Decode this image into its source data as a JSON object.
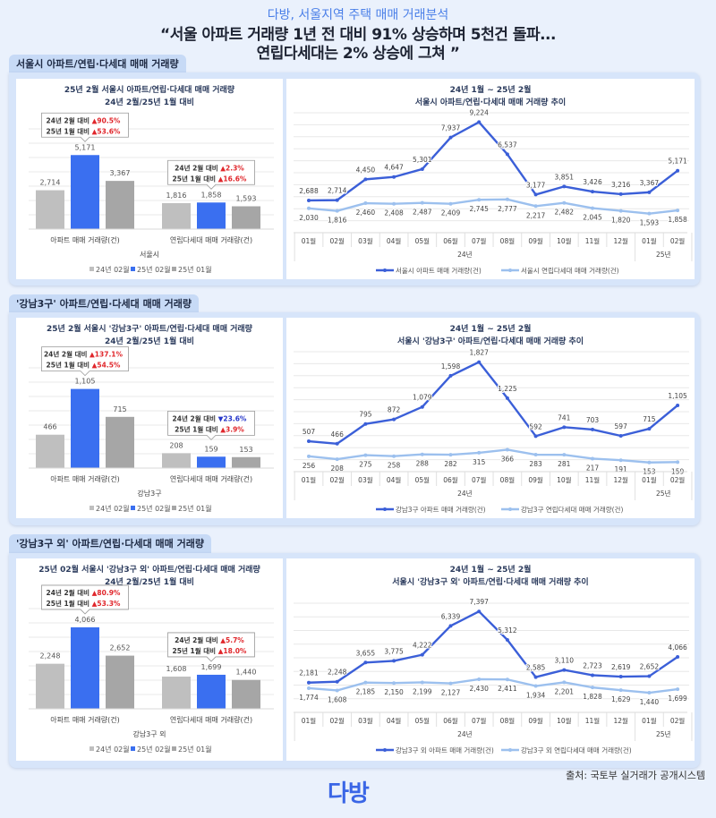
{
  "header": {
    "subtitle": "다방, 서울지역 주택 매매 거래분석",
    "title_line1": "“서울 아파트 거래량 1년 전 대비 91% 상승하며 5천건 돌파...",
    "title_line2": "연립다세대는 2% 상승에 그쳐 ”"
  },
  "sections": [
    {
      "tab": "서울시 아파트/연립·다세대 매매 거래량"
    },
    {
      "tab": "'강남3구' 아파트/연립·다세대 매매 거래량"
    },
    {
      "tab": "'강남3구 외' 아파트/연립·다세대 매매 거래량"
    }
  ],
  "footer": {
    "source": "출처: 국토부 실거래가 공개시스템",
    "logo": "다방"
  },
  "colors": {
    "bar_prev_year": "#bfbfbf",
    "bar_current": "#3a6ff0",
    "bar_prev_month": "#a6a6a6",
    "line_apartment": "#3b5fd8",
    "line_villa": "#9cc0ee",
    "up": "#e0262b",
    "down": "#2536c9"
  },
  "chart_data": [
    {
      "type": "bar",
      "title": "25년 2월 서울시 아파트/연립·다세대 매매 거래량",
      "subtitle": "24년 2월/25년 1월 대비",
      "categories": [
        "아파트 매매 거래량(건)",
        "연립다세대 매매 거래량(건)"
      ],
      "group_label": "서울시",
      "ylim": [
        0,
        7000
      ],
      "grid": true,
      "legend": "bottom",
      "series": [
        {
          "name": "24년 02월",
          "values": [
            2714,
            1816
          ],
          "color": "#bfbfbf"
        },
        {
          "name": "25년 02월",
          "values": [
            5171,
            1858
          ],
          "color": "#3a6ff0"
        },
        {
          "name": "25년 01월",
          "values": [
            3367,
            1593
          ],
          "color": "#a6a6a6"
        }
      ],
      "callouts": [
        [
          {
            "label": "24년 2월 대비",
            "dir": "up",
            "value": "90.5%"
          },
          {
            "label": "25년 1월 대비",
            "dir": "up",
            "value": "53.6%"
          }
        ],
        [
          {
            "label": "24년 2월 대비",
            "dir": "up",
            "value": "2.3%"
          },
          {
            "label": "25년 1월 대비",
            "dir": "up",
            "value": "16.6%"
          }
        ]
      ]
    },
    {
      "type": "line",
      "title": "24년 1월 ~ 25년 2월",
      "subtitle": "서울시 아파트/연립·다세대 매매 거래량 추이",
      "x": [
        "01월",
        "02월",
        "03월",
        "04월",
        "05월",
        "06월",
        "07월",
        "08월",
        "09월",
        "10월",
        "11월",
        "12월",
        "01월",
        "02월"
      ],
      "year_groups": [
        {
          "label": "24년",
          "months": 12
        },
        {
          "label": "25년",
          "months": 2
        }
      ],
      "ylim": [
        0,
        10000
      ],
      "grid": true,
      "legend": "bottom",
      "series": [
        {
          "name": "서울시 아파트 매매 거래량(건)",
          "values": [
            2688,
            2714,
            4450,
            4647,
            5301,
            7937,
            9224,
            6537,
            3177,
            3851,
            3426,
            3216,
            3367,
            5171
          ],
          "color": "#3b5fd8"
        },
        {
          "name": "서울시 연립다세대 매매 거래량(건)",
          "values": [
            2030,
            1816,
            2460,
            2408,
            2487,
            2409,
            2745,
            2777,
            2217,
            2482,
            2045,
            1820,
            1593,
            1858
          ],
          "color": "#9cc0ee"
        }
      ]
    },
    {
      "type": "bar",
      "title": "25년 2월 서울시 '강남3구' 아파트/연립·다세대 매매 거래량",
      "subtitle": "24년 2월/25년 1월 대비",
      "categories": [
        "아파트 매매 거래량(건)",
        "연립다세대 매매 거래량(건)"
      ],
      "group_label": "강남3구",
      "ylim": [
        0,
        1400
      ],
      "grid": true,
      "legend": "bottom",
      "series": [
        {
          "name": "24년 02월",
          "values": [
            466,
            208
          ],
          "color": "#bfbfbf"
        },
        {
          "name": "25년 02월",
          "values": [
            1105,
            159
          ],
          "color": "#3a6ff0"
        },
        {
          "name": "25년 01월",
          "values": [
            715,
            153
          ],
          "color": "#a6a6a6"
        }
      ],
      "callouts": [
        [
          {
            "label": "24년 2월 대비",
            "dir": "up",
            "value": "137.1%"
          },
          {
            "label": "25년 1월 대비",
            "dir": "up",
            "value": "54.5%"
          }
        ],
        [
          {
            "label": "24년 2월 대비",
            "dir": "down",
            "value": "23.6%"
          },
          {
            "label": "25년 1월 대비",
            "dir": "up",
            "value": "3.9%"
          }
        ]
      ]
    },
    {
      "type": "line",
      "title": "24년 1월 ~ 25년 2월",
      "subtitle": "서울시 '강남3구' 아파트/연립·다세대 매매 거래량 추이",
      "x": [
        "01월",
        "02월",
        "03월",
        "04월",
        "05월",
        "06월",
        "07월",
        "08월",
        "09월",
        "10월",
        "11월",
        "12월",
        "01월",
        "02월"
      ],
      "year_groups": [
        {
          "label": "24년",
          "months": 12
        },
        {
          "label": "25년",
          "months": 2
        }
      ],
      "ylim": [
        0,
        2000
      ],
      "grid": true,
      "legend": "bottom",
      "series": [
        {
          "name": "강남3구 아파트 매매 거래량(건)",
          "values": [
            507,
            466,
            795,
            872,
            1079,
            1598,
            1827,
            1225,
            592,
            741,
            703,
            597,
            715,
            1105
          ],
          "color": "#3b5fd8"
        },
        {
          "name": "강남3구 연립다세대 매매 거래량(건)",
          "values": [
            256,
            208,
            275,
            258,
            288,
            282,
            315,
            366,
            283,
            281,
            217,
            191,
            153,
            159
          ],
          "color": "#9cc0ee"
        }
      ]
    },
    {
      "type": "bar",
      "title": "25년 02월 서울시 '강남3구 외' 아파트/연립·다세대 매매 거래량",
      "subtitle": "24년 2월/25년 1월 대비",
      "categories": [
        "아파트 매매 거래량(건)",
        "연립다세대 매매 거래량(건)"
      ],
      "group_label": "강남3구 외",
      "ylim": [
        0,
        5000
      ],
      "grid": true,
      "legend": "bottom",
      "series": [
        {
          "name": "24년 02월",
          "values": [
            2248,
            1608
          ],
          "color": "#bfbfbf"
        },
        {
          "name": "25년 02월",
          "values": [
            4066,
            1699
          ],
          "color": "#3a6ff0"
        },
        {
          "name": "25년 01월",
          "values": [
            2652,
            1440
          ],
          "color": "#a6a6a6"
        }
      ],
      "callouts": [
        [
          {
            "label": "24년 2월 대비",
            "dir": "up",
            "value": "80.9%"
          },
          {
            "label": "25년 1월 대비",
            "dir": "up",
            "value": "53.3%"
          }
        ],
        [
          {
            "label": "24년 2월 대비",
            "dir": "up",
            "value": "5.7%"
          },
          {
            "label": "25년 1월 대비",
            "dir": "up",
            "value": "18.0%"
          }
        ]
      ]
    },
    {
      "type": "line",
      "title": "24년 1월 ~ 25년 2월",
      "subtitle": "서울시 '강남3구 외' 아파트/연립·다세대 매매 거래량 추이",
      "x": [
        "01월",
        "02월",
        "03월",
        "04월",
        "05월",
        "06월",
        "07월",
        "08월",
        "09월",
        "10월",
        "11월",
        "12월",
        "01월",
        "02월"
      ],
      "year_groups": [
        {
          "label": "24년",
          "months": 12
        },
        {
          "label": "25년",
          "months": 2
        }
      ],
      "ylim": [
        0,
        8000
      ],
      "grid": true,
      "legend": "bottom",
      "series": [
        {
          "name": "강남3구 외 아파트 매매 거래량(건)",
          "values": [
            2181,
            2248,
            3655,
            3775,
            4222,
            6339,
            7397,
            5312,
            2585,
            3110,
            2723,
            2619,
            2652,
            4066
          ],
          "color": "#3b5fd8"
        },
        {
          "name": "강남3구 외 연립다세대 매매 거래량(건)",
          "values": [
            1774,
            1608,
            2185,
            2150,
            2199,
            2127,
            2430,
            2411,
            1934,
            2201,
            1828,
            1629,
            1440,
            1699
          ],
          "color": "#9cc0ee"
        }
      ]
    }
  ]
}
